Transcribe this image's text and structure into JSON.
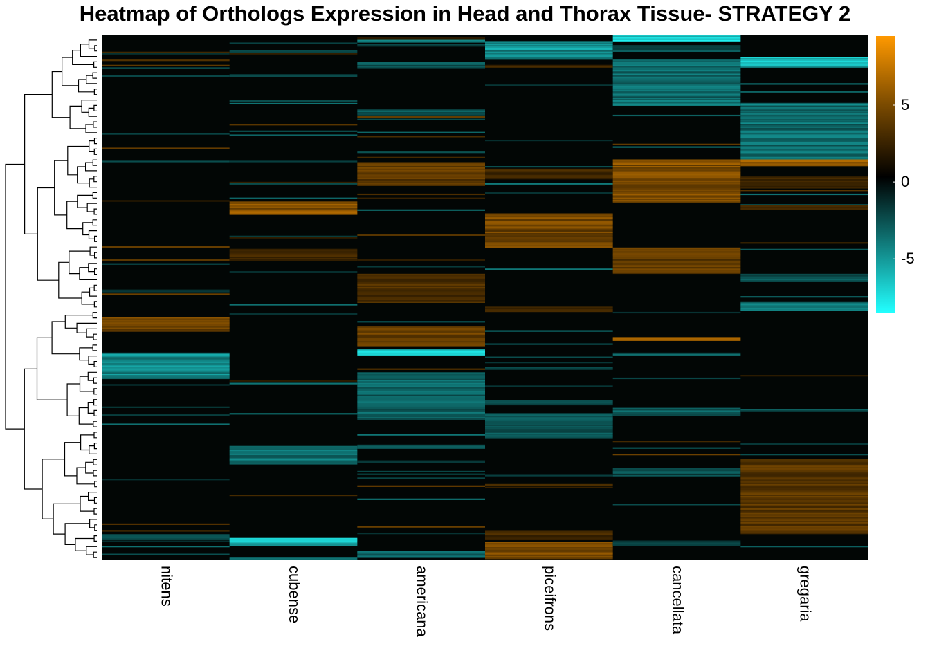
{
  "chart_data": {
    "type": "heatmap",
    "title": "Heatmap of Orthologs Expression in Head and Thorax Tissue- STRATEGY 2",
    "columns": [
      "nitens",
      "cubense",
      "americana",
      "piceifrons",
      "cancellata",
      "gregaria"
    ],
    "rows_count": 400,
    "value_range": [
      -8.5,
      9.5
    ],
    "legend": {
      "ticks": [
        5,
        0,
        -5
      ],
      "tick_labels": [
        "5",
        "0",
        "-5"
      ],
      "low_color": "#22ffff",
      "mid_color": "#000000",
      "high_color": "#ff9900",
      "position": "right"
    },
    "row_dendrogram": true,
    "blocks": {
      "nitens": [
        [
          215,
          226,
          5
        ],
        [
          243,
          262,
          -5.5
        ],
        [
          380,
          384,
          -3
        ]
      ],
      "cubense": [
        [
          127,
          137,
          6.5
        ],
        [
          164,
          172,
          3
        ],
        [
          314,
          327,
          -4.5
        ],
        [
          383,
          389,
          -8
        ],
        [
          398,
          400,
          -6
        ]
      ],
      "americana": [
        [
          4,
          6,
          -6
        ],
        [
          21,
          26,
          -3.5
        ],
        [
          57,
          62,
          -3.5
        ],
        [
          97,
          115,
          4.5
        ],
        [
          182,
          204,
          3.5
        ],
        [
          222,
          237,
          5
        ],
        [
          239,
          244,
          -8.5
        ],
        [
          257,
          291,
          -4
        ],
        [
          312,
          315,
          -3.5
        ],
        [
          324,
          326,
          -3
        ],
        [
          393,
          398,
          -4
        ]
      ],
      "piceifrons": [
        [
          5,
          18,
          -6
        ],
        [
          23,
          25,
          3
        ],
        [
          102,
          110,
          3
        ],
        [
          136,
          162,
          5.5
        ],
        [
          207,
          211,
          3
        ],
        [
          278,
          282,
          -3
        ],
        [
          288,
          307,
          -3.5
        ],
        [
          378,
          384,
          3
        ],
        [
          386,
          399,
          6
        ]
      ],
      "cancellata": [
        [
          0,
          5,
          -8
        ],
        [
          8,
          13,
          -3
        ],
        [
          19,
          54,
          -4.5
        ],
        [
          95,
          128,
          6
        ],
        [
          162,
          182,
          4.5
        ],
        [
          230,
          233,
          6.5
        ],
        [
          284,
          290,
          -4
        ],
        [
          330,
          333,
          -3
        ],
        [
          385,
          389,
          -3
        ]
      ],
      "gregaria": [
        [
          17,
          25,
          -7
        ],
        [
          52,
          95,
          -4.5
        ],
        [
          95,
          100,
          6.5
        ],
        [
          108,
          117,
          3
        ],
        [
          130,
          133,
          3
        ],
        [
          182,
          188,
          -3.5
        ],
        [
          204,
          210,
          -5
        ],
        [
          323,
          380,
          4
        ]
      ]
    }
  }
}
